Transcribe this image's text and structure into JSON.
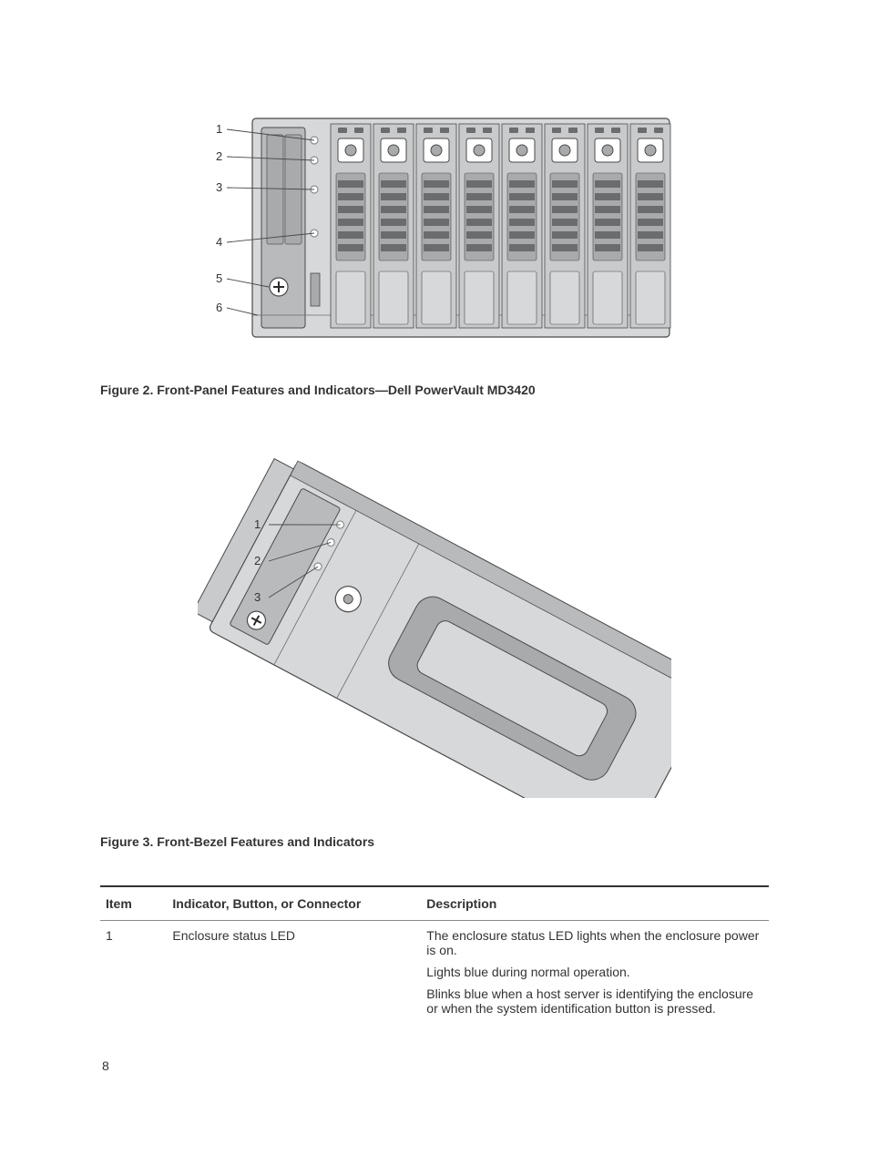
{
  "page_number": "8",
  "figure2": {
    "caption": "Figure 2. Front-Panel Features and Indicators—Dell PowerVault MD3420",
    "callouts": [
      "1",
      "2",
      "3",
      "4",
      "5",
      "6"
    ],
    "drive_bays": 8,
    "colors": {
      "chassis": "#d6d8da",
      "chassis_dark": "#b8babc",
      "panel": "#c8cacc",
      "slot": "#a8aaac",
      "grill": "#6a6c6e",
      "led_ring": "#8a8c8e",
      "line": "#4a4a4a",
      "text": "#333333",
      "white": "#ffffff",
      "plus": "#2a2a2a"
    }
  },
  "figure3": {
    "caption": "Figure 3. Front-Bezel Features and Indicators",
    "callouts": [
      "1",
      "2",
      "3"
    ],
    "colors": {
      "body": "#d6d8da",
      "body_dark": "#a8aaac",
      "edge": "#4a4a4a",
      "line": "#4a4a4a",
      "text": "#333333",
      "white": "#ffffff"
    }
  },
  "table": {
    "headers": {
      "item": "Item",
      "indicator": "Indicator, Button, or Connector",
      "description": "Description"
    },
    "rows": [
      {
        "item": "1",
        "indicator": "Enclosure status LED",
        "description": [
          "The enclosure status LED lights when the enclosure power is on.",
          "Lights blue during normal operation.",
          "Blinks blue when a host server is identifying the enclosure or when the system identification button is pressed."
        ]
      }
    ]
  }
}
